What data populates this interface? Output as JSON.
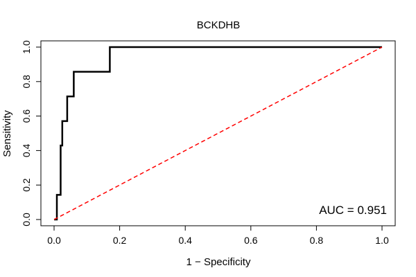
{
  "chart_data": {
    "type": "line",
    "title": "BCKDHB",
    "xlabel": "1 − Specificity",
    "ylabel": "Sensitivity",
    "xlim": [
      0,
      1
    ],
    "ylim": [
      0,
      1
    ],
    "x_ticks": [
      "0.0",
      "0.2",
      "0.4",
      "0.6",
      "0.8",
      "1.0"
    ],
    "y_ticks": [
      "0.0",
      "0.2",
      "0.4",
      "0.6",
      "0.8",
      "1.0"
    ],
    "grid": false,
    "legend": "none",
    "annotation": "AUC = 0.951",
    "series": [
      {
        "color": "#000000",
        "style": "solid",
        "x": [
          0.0,
          0.0085,
          0.0085,
          0.0085,
          0.02,
          0.02,
          0.025,
          0.025,
          0.03,
          0.03,
          0.04,
          0.04,
          0.06,
          0.06,
          0.17,
          0.17,
          1.0
        ],
        "y": [
          0.0,
          0.0,
          0.143,
          0.143,
          0.143,
          0.429,
          0.429,
          0.571,
          0.571,
          0.571,
          0.571,
          0.714,
          0.714,
          0.857,
          0.857,
          1.0,
          1.0
        ]
      },
      {
        "color": "#ff0000",
        "style": "dashed",
        "x": [
          0.0,
          1.0
        ],
        "y": [
          0.0,
          1.0
        ]
      }
    ]
  }
}
